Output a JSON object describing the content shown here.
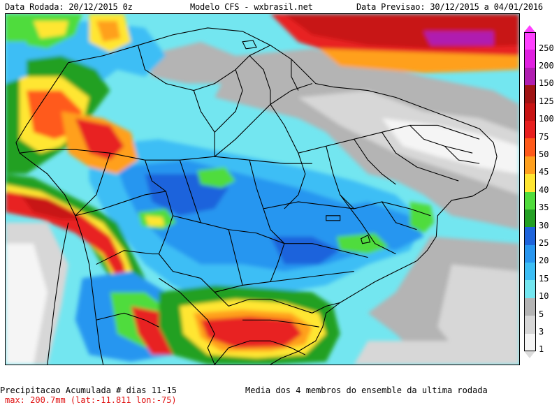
{
  "header": {
    "left": "Data Rodada: 20/12/2015 0z",
    "center": "Modelo CFS - wxbrasil.net",
    "right": "Data Previsao: 30/12/2015 a 04/01/2016"
  },
  "footer": {
    "title": "Precipitacao Acumulada # dias 11-15",
    "max": "max: 200.7mm (lat:-11.811 lon:-75)",
    "note": "Media dos 4 membros do ensemble da ultima rodada"
  },
  "legend": {
    "units": "mm",
    "levels": [
      {
        "label": "250",
        "color": "#ff40ff"
      },
      {
        "label": "200",
        "color": "#e020e0"
      },
      {
        "label": "150",
        "color": "#b01eb0"
      },
      {
        "label": "125",
        "color": "#a01414"
      },
      {
        "label": "100",
        "color": "#c81414"
      },
      {
        "label": "75",
        "color": "#e82020"
      },
      {
        "label": "50",
        "color": "#ff5a1a"
      },
      {
        "label": "45",
        "color": "#ffa01e"
      },
      {
        "label": "40",
        "color": "#ffe632"
      },
      {
        "label": "35",
        "color": "#50dc3c"
      },
      {
        "label": "30",
        "color": "#24a024"
      },
      {
        "label": "25",
        "color": "#1e64dc"
      },
      {
        "label": "20",
        "color": "#2896f0"
      },
      {
        "label": "15",
        "color": "#3cbef5"
      },
      {
        "label": "10",
        "color": "#73e6f0"
      },
      {
        "label": "5",
        "color": "#b4b4b4"
      },
      {
        "label": "3",
        "color": "#d7d7d7"
      },
      {
        "label": "1",
        "color": "#f5f5f5"
      }
    ]
  }
}
